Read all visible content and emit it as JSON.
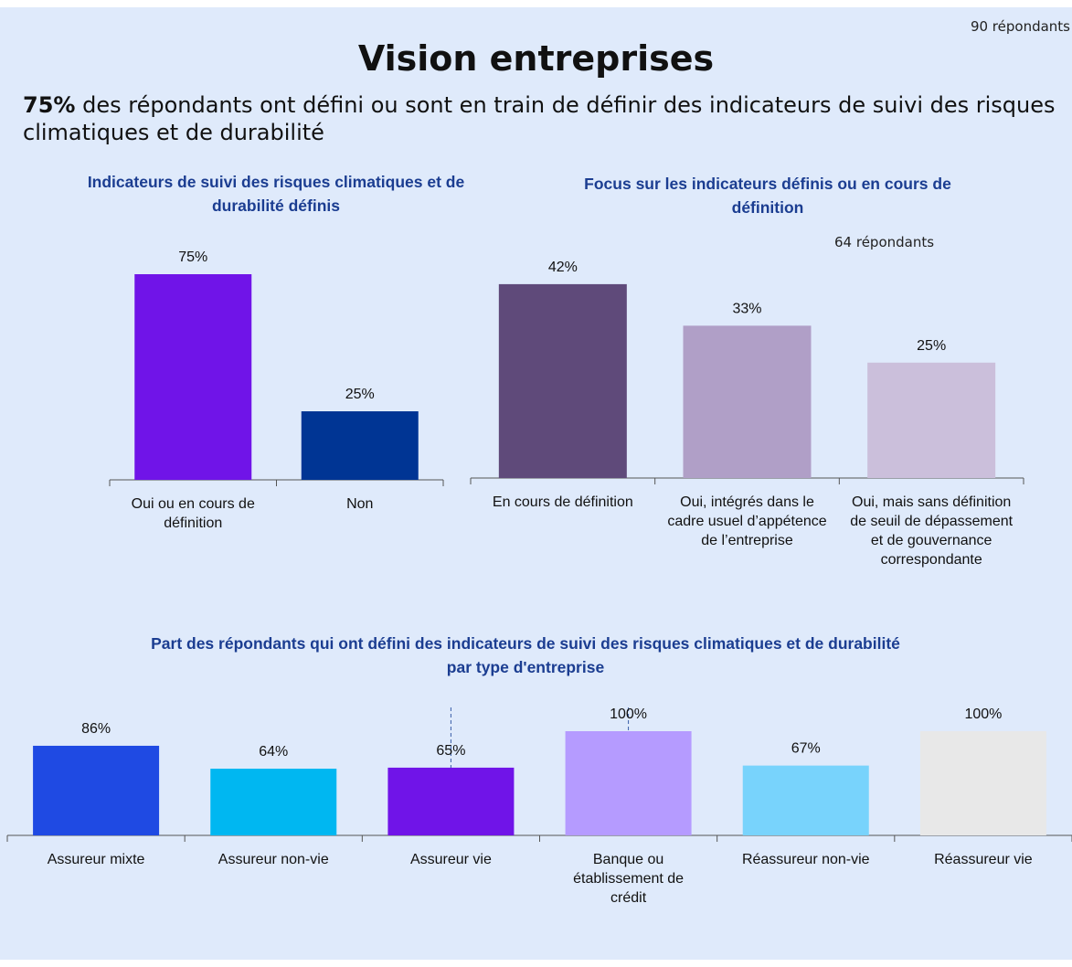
{
  "header": {
    "respondents": "90 répondants",
    "title": "Vision entreprises",
    "headline_value": "75%",
    "headline_text": "des répondants ont défini ou sont en train de définir des indicateurs de suivi des risques climatiques et de durabilité"
  },
  "chart_data": [
    {
      "type": "bar",
      "title": "Indicateurs de suivi des risques climatiques et de durabilité définis",
      "categories": [
        "Oui ou en cours de définition",
        "Non"
      ],
      "values": [
        75,
        25
      ],
      "value_labels": [
        "75%",
        "25%"
      ],
      "colors": [
        "#7014e8",
        "#003594"
      ]
    },
    {
      "type": "bar",
      "title": "Focus sur les indicateurs définis ou en cours de définition",
      "subtitle": "64 répondants",
      "categories": [
        "En cours de définition",
        "Oui, intégrés dans le cadre usuel d’appétence de l’entreprise",
        "Oui, mais sans définition de seuil de dépassement et de gouvernance correspondante"
      ],
      "values": [
        42,
        33,
        25
      ],
      "value_labels": [
        "42%",
        "33%",
        "25%"
      ],
      "colors": [
        "#5f4a7a",
        "#b09fc7",
        "#cbbfdb"
      ]
    },
    {
      "type": "bar",
      "title": "Part des répondants qui ont défini des indicateurs de suivi des risques climatiques et de durabilité par type d'entreprise",
      "categories": [
        "Assureur mixte",
        "Assureur non-vie",
        "Assureur vie",
        "Banque ou établissement de crédit",
        "Réassureur non-vie",
        "Réassureur vie"
      ],
      "values": [
        86,
        64,
        65,
        100,
        67,
        100
      ],
      "value_labels": [
        "86%",
        "64%",
        "65%",
        "100%",
        "67%",
        "100%"
      ],
      "colors": [
        "#1f4ae3",
        "#00b7f1",
        "#7014e8",
        "#b59bff",
        "#78d3fc",
        "#e8e8e8"
      ]
    }
  ]
}
